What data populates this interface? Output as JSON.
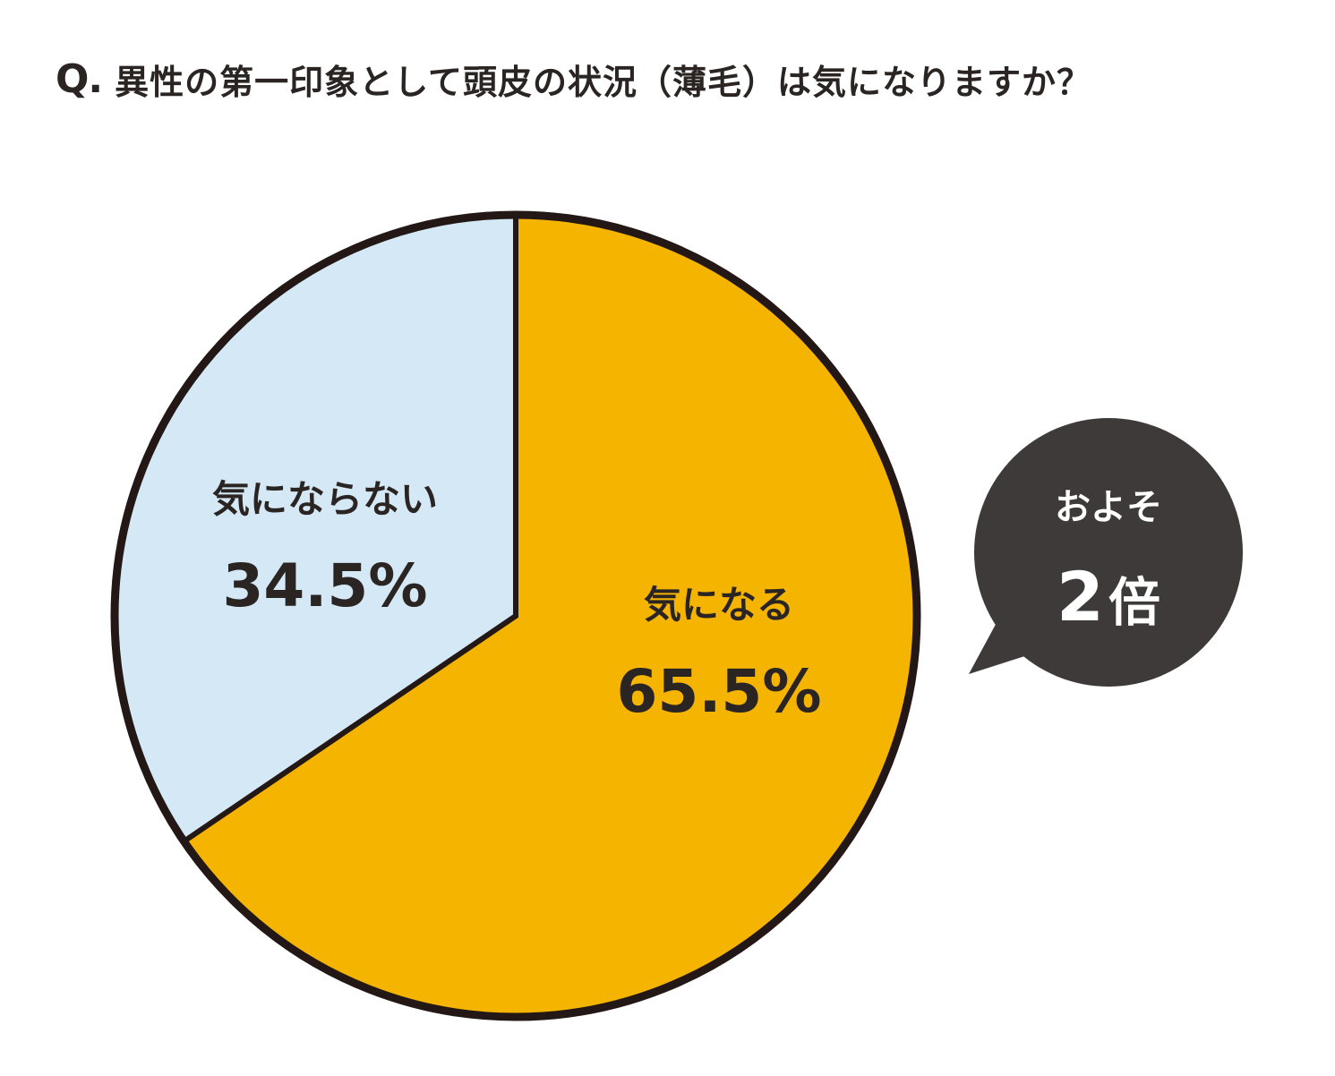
{
  "header": {
    "q_mark": "Q.",
    "question": "異性の第一印象として頭皮の状況（薄毛）は気になりますか？"
  },
  "chart_data": {
    "type": "pie",
    "title": "異性の第一印象として頭皮の状況（薄毛）は気になりますか？",
    "start_angle_deg": 0,
    "direction": "clockwise",
    "slices": [
      {
        "label": "気になる",
        "value": 65.5,
        "value_label": "65.5%",
        "color": "#F4B400"
      },
      {
        "label": "気にならない",
        "value": 34.5,
        "value_label": "34.5%",
        "color": "#D5E8F5"
      }
    ],
    "outline_color": "#231815"
  },
  "callout": {
    "line1": "およそ",
    "number": "2",
    "unit": "倍",
    "color": "#3E3A39",
    "text_color": "#FFFFFF"
  }
}
